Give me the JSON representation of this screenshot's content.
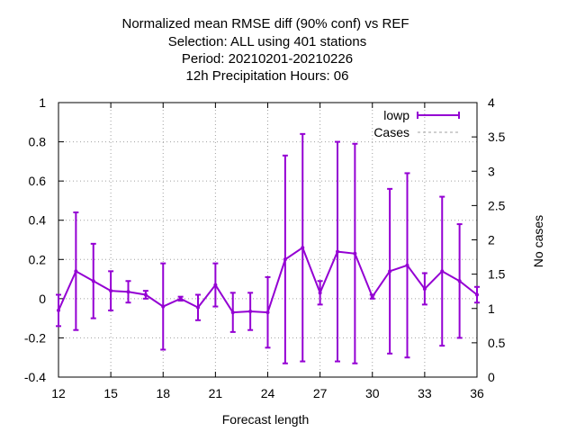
{
  "chart_data": {
    "type": "line",
    "title_lines": [
      "Normalized mean RMSE diff (90% conf) vs REF",
      "Selection: ALL using   401 stations",
      "Period: 20210201-20210226",
      "12h Precipitation   Hours:  06"
    ],
    "xlabel": "Forecast length",
    "ylabel": "",
    "y2label": "No cases",
    "xlim": [
      12,
      36
    ],
    "ylim": [
      -0.4,
      1.0
    ],
    "y2lim": [
      0,
      4
    ],
    "xticks": [
      12,
      15,
      18,
      21,
      24,
      27,
      30,
      33,
      36
    ],
    "yticks": [
      -0.4,
      -0.2,
      0,
      0.2,
      0.4,
      0.6,
      0.8,
      1
    ],
    "yticklabels": [
      "-0.4",
      "-0.2",
      "0",
      "0.2",
      "0.4",
      "0.6",
      "0.8",
      "1"
    ],
    "y2ticks": [
      0,
      0.5,
      1,
      1.5,
      2,
      2.5,
      3,
      3.5,
      4
    ],
    "y2ticklabels": [
      "0",
      "0.5",
      "1",
      "1.5",
      "2",
      "2.5",
      "3",
      "3.5",
      "4"
    ],
    "grid": true,
    "legend_position": "top-right",
    "series": [
      {
        "name": "lowp",
        "color": "#9400d3",
        "style": "errorbars",
        "x": [
          12,
          13,
          14,
          15,
          16,
          17,
          18,
          19,
          20,
          21,
          22,
          23,
          24,
          25,
          26,
          27,
          28,
          29,
          30,
          31,
          32,
          33,
          34,
          35,
          36
        ],
        "y": [
          -0.06,
          0.14,
          0.09,
          0.04,
          0.035,
          0.02,
          -0.04,
          0.0,
          -0.045,
          0.07,
          -0.07,
          -0.065,
          -0.07,
          0.2,
          0.26,
          0.03,
          0.24,
          0.23,
          0.01,
          0.14,
          0.17,
          0.05,
          0.14,
          0.09,
          0.02
        ],
        "low": [
          -0.14,
          -0.16,
          -0.1,
          -0.06,
          -0.02,
          0.0,
          -0.26,
          -0.01,
          -0.11,
          -0.04,
          -0.17,
          -0.16,
          -0.25,
          -0.33,
          -0.32,
          -0.03,
          -0.32,
          -0.33,
          0.0,
          -0.28,
          -0.3,
          -0.03,
          -0.24,
          -0.2,
          -0.02
        ]
      },
      {
        "name": "Cases",
        "color": "#a0a0a0",
        "style": "dashed",
        "axis": "y2",
        "x": [],
        "y": []
      }
    ]
  }
}
